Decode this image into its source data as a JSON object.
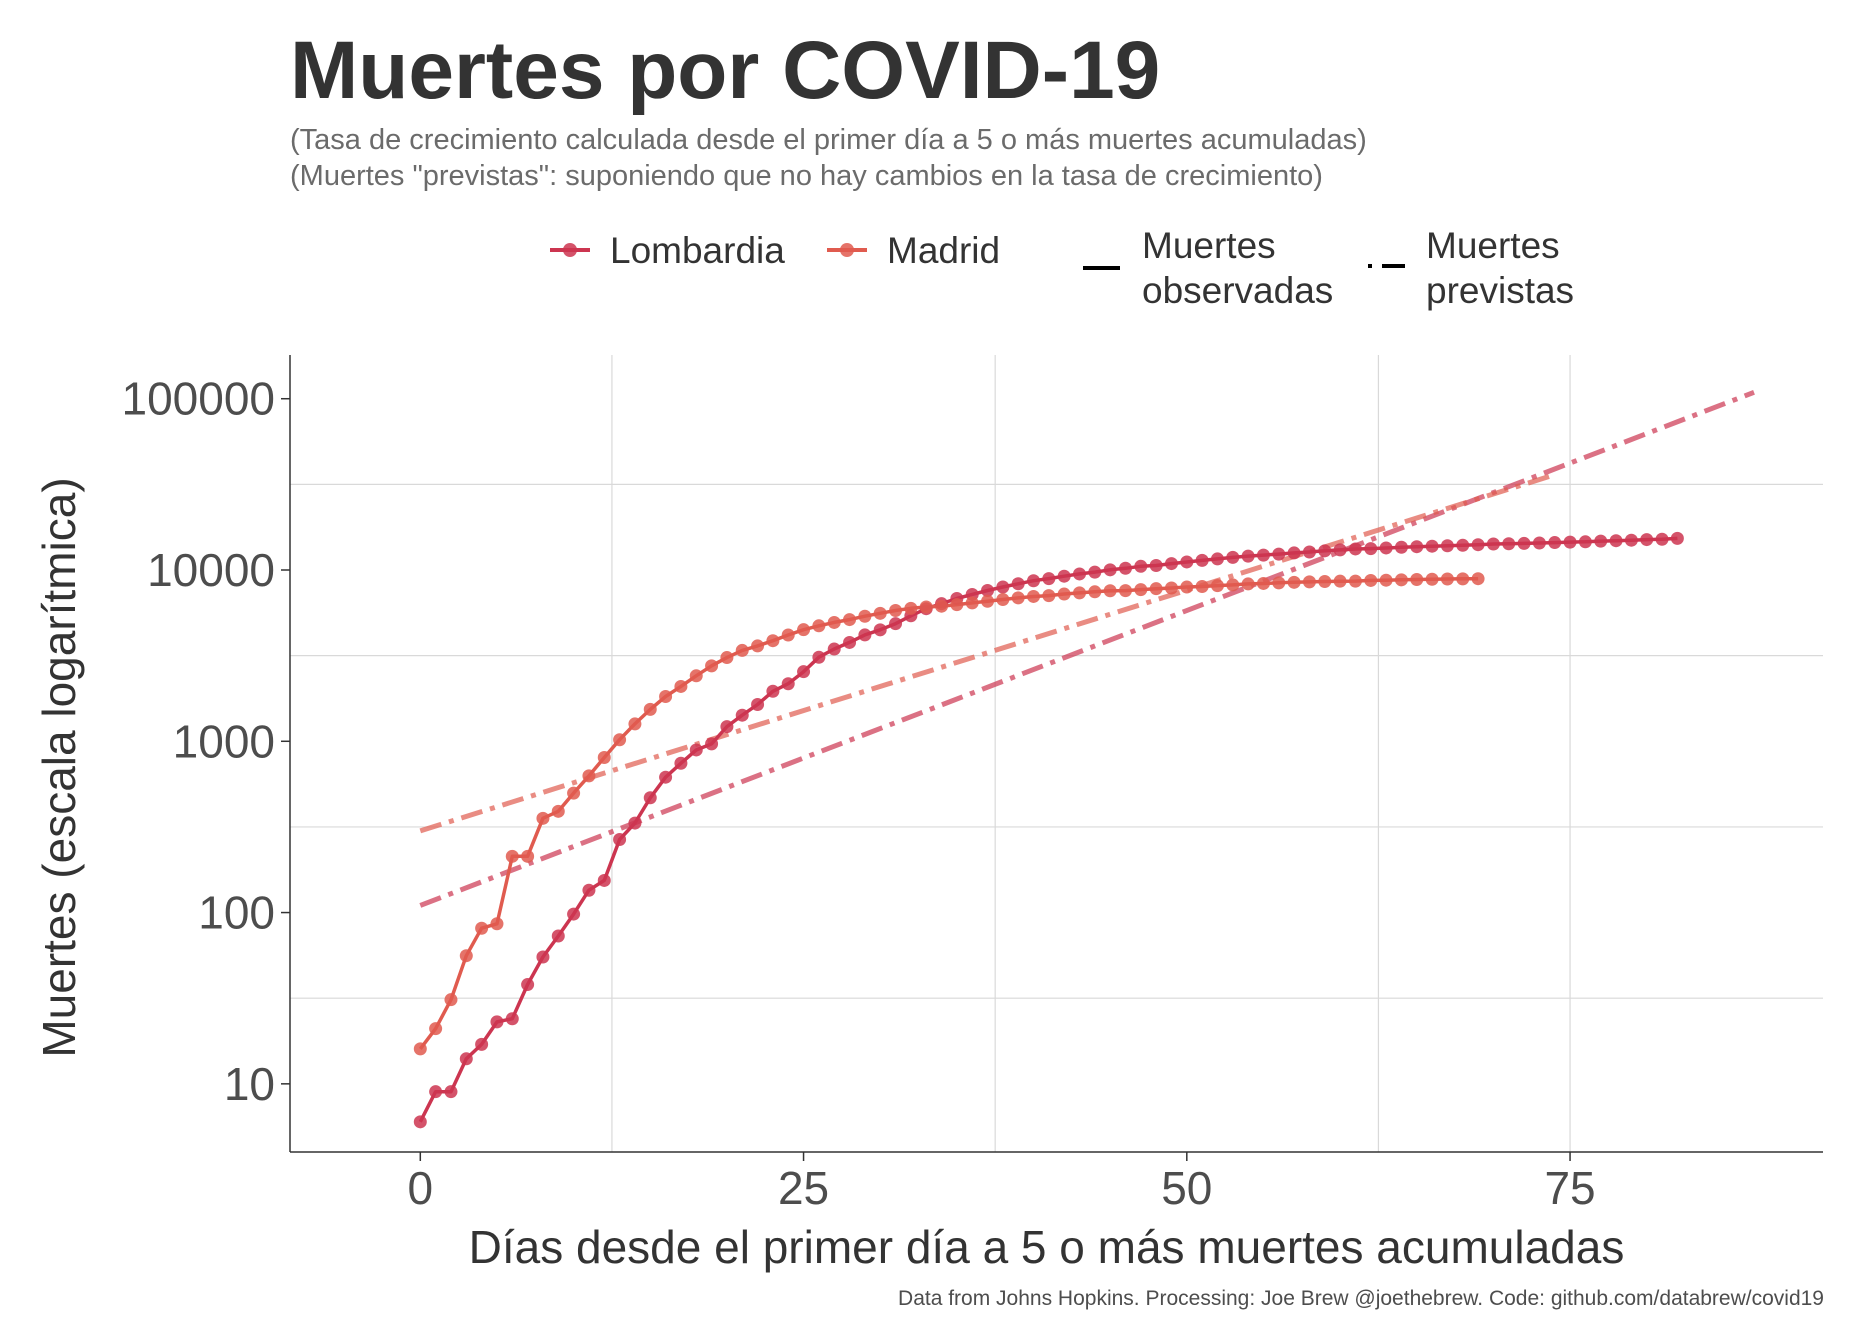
{
  "title": "Muertes por COVID-19",
  "subtitle": [
    "(Tasa de crecimiento calculada desde el primer día a 5 o más muertes acumuladas)",
    "(Muertes \"previstas\": suponiendo que no hay cambios en la tasa de crecimiento)"
  ],
  "caption": "Data from Johns Hopkins. Processing: Joe Brew @joethebrew. Code: github.com/databrew/covid19",
  "legend": {
    "series": [
      "Lombardia",
      "Madrid"
    ],
    "linetypes": [
      [
        "Muertes",
        "observadas"
      ],
      [
        "Muertes",
        "previstas"
      ]
    ]
  },
  "colors": {
    "Lombardia": "#cc3550",
    "Madrid": "#e05b4f"
  },
  "chart_data": {
    "type": "line",
    "xlabel": "Días desde el primer día a 5 o más muertes acumuladas",
    "ylabel": "Muertes (escala logarítmica)",
    "y_scale": "log10",
    "xlim": [
      -8.5,
      91.5
    ],
    "ylim": [
      4,
      180000
    ],
    "x_ticks": [
      0,
      25,
      50,
      75
    ],
    "y_ticks": [
      10,
      100,
      1000,
      10000,
      100000
    ],
    "y_tick_labels": [
      "10",
      "100",
      "1000",
      "10000",
      "100000"
    ],
    "grid": true,
    "legend_position": "top",
    "series": [
      {
        "name": "Lombardia",
        "kind": "observed",
        "x_start": 0,
        "values": [
          6,
          9,
          9,
          14,
          17,
          23,
          24,
          38,
          55,
          73,
          98,
          135,
          154,
          267,
          333,
          468,
          617,
          744,
          890,
          966,
          1218,
          1420,
          1640,
          1959,
          2168,
          2549,
          3095,
          3456,
          3776,
          4178,
          4474,
          4861,
          5402,
          5944,
          6360,
          6818,
          7199,
          7593,
          7960,
          8311,
          8656,
          8905,
          9202,
          9484,
          9722,
          10022,
          10238,
          10511,
          10621,
          10901,
          11142,
          11377,
          11608,
          11851,
          12050,
          12213,
          12376,
          12579,
          12740,
          12940,
          13106,
          13269,
          13325,
          13449,
          13575,
          13679,
          13772,
          13860,
          13939,
          14053,
          14189,
          14231,
          14294,
          14380,
          14462,
          14543,
          14611,
          14745,
          14826,
          14929,
          15054,
          15116,
          15296
        ]
      },
      {
        "name": "Madrid",
        "kind": "observed",
        "x_start": 0,
        "values": [
          16,
          21,
          31,
          56,
          81,
          86,
          213,
          213,
          355,
          390,
          498,
          628,
          804,
          1021,
          1263,
          1535,
          1825,
          2090,
          2412,
          2757,
          3082,
          3392,
          3603,
          3865,
          4175,
          4483,
          4723,
          4941,
          5136,
          5371,
          5586,
          5800,
          5972,
          6084,
          6148,
          6278,
          6423,
          6568,
          6724,
          6877,
          7007,
          7084,
          7239,
          7351,
          7460,
          7563,
          7580,
          7684,
          7780,
          7848,
          7952,
          8014,
          8109,
          8181,
          8293,
          8345,
          8414,
          8472,
          8525,
          8568,
          8605,
          8615,
          8691,
          8720,
          8763,
          8800,
          8832,
          8864,
          8879,
          8898
        ]
      },
      {
        "name": "Lombardia",
        "kind": "projected",
        "x": [
          0,
          87
        ],
        "y": [
          110,
          109000
        ]
      },
      {
        "name": "Madrid",
        "kind": "projected",
        "x": [
          0,
          74
        ],
        "y": [
          300,
          36000
        ]
      }
    ]
  }
}
